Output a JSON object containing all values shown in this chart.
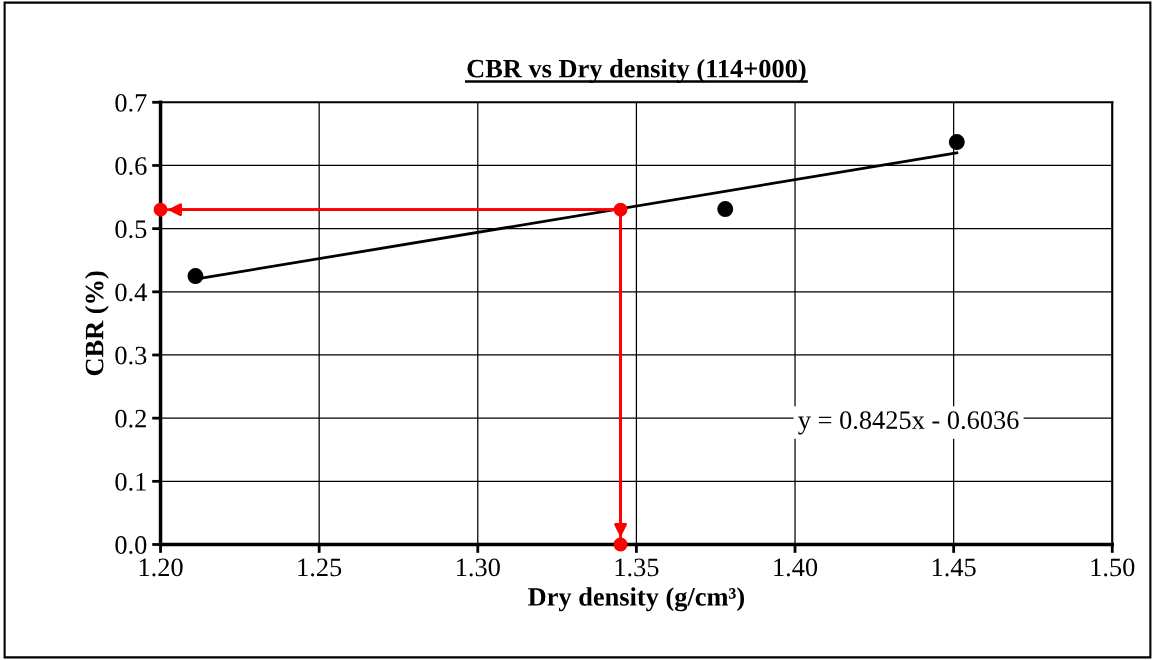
{
  "chart_data": {
    "type": "scatter",
    "title": "CBR vs Dry density (114+000)",
    "xlabel": "Dry density (g/cm³)",
    "ylabel": "CBR (%)",
    "series": [
      {
        "color": "#000000",
        "x": [
          1.211,
          1.378,
          1.451
        ],
        "values": [
          0.425,
          0.531,
          0.637
        ]
      },
      {
        "type": "line",
        "color": "#000000",
        "marker": "none",
        "x": [
          1.211,
          1.451
        ],
        "values": [
          0.42,
          0.62
        ]
      },
      {
        "type": "line",
        "color": "#ff0000",
        "marker": "circle",
        "x": [
          1.2,
          1.345,
          1.345
        ],
        "values": [
          0.53,
          0.53,
          0.0
        ]
      }
    ],
    "annotations": [
      "y = 0.8425x - 0.6036"
    ],
    "xlim": [
      1.2,
      1.5
    ],
    "xticks": [
      {
        "value": 1.2,
        "label": "1.20"
      },
      {
        "value": 1.25,
        "label": "1.25"
      },
      {
        "value": 1.3,
        "label": "1.30"
      },
      {
        "value": 1.35,
        "label": "1.35"
      },
      {
        "value": 1.4,
        "label": "1.40"
      },
      {
        "value": 1.45,
        "label": "1.45"
      },
      {
        "value": 1.5,
        "label": "1.50"
      }
    ],
    "ylim": [
      0,
      0.7
    ],
    "yticks": [
      {
        "value": 0,
        "label": "0.0"
      },
      0.1,
      0.2,
      0.3,
      0.4,
      0.5,
      0.6,
      0.7
    ],
    "grid": true,
    "legend": false
  }
}
